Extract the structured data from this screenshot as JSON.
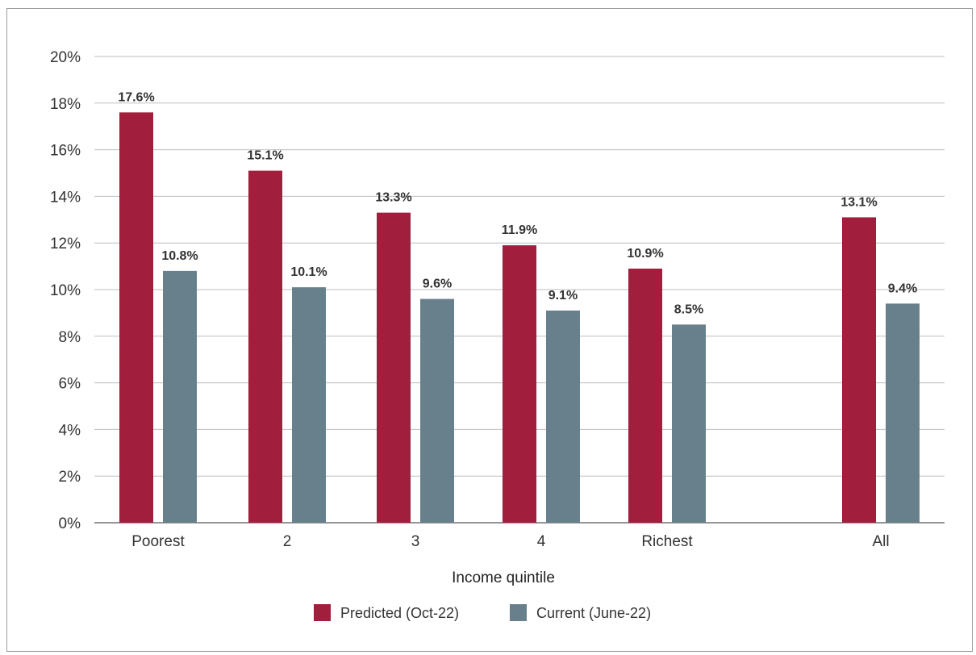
{
  "chart_data": {
    "type": "bar",
    "title": "",
    "xlabel": "Income quintile",
    "ylabel": "",
    "ylim": [
      0,
      20
    ],
    "yticks": [
      "0%",
      "2%",
      "4%",
      "6%",
      "8%",
      "10%",
      "12%",
      "14%",
      "16%",
      "18%",
      "20%"
    ],
    "categories": [
      "Poorest",
      "2",
      "3",
      "4",
      "Richest",
      "All"
    ],
    "series": [
      {
        "name": "Predicted (Oct-22)",
        "color": "#a11e3d",
        "values": [
          17.6,
          15.1,
          13.3,
          11.9,
          10.9,
          13.1
        ],
        "labels": [
          "17.6%",
          "15.1%",
          "13.3%",
          "11.9%",
          "10.9%",
          "13.1%"
        ]
      },
      {
        "name": "Current (June-22)",
        "color": "#67808b",
        "values": [
          10.8,
          10.1,
          9.6,
          9.1,
          8.5,
          9.4
        ],
        "labels": [
          "10.8%",
          "10.1%",
          "9.6%",
          "9.1%",
          "8.5%",
          "9.4%"
        ]
      }
    ],
    "grid": true,
    "legend_position": "bottom"
  }
}
